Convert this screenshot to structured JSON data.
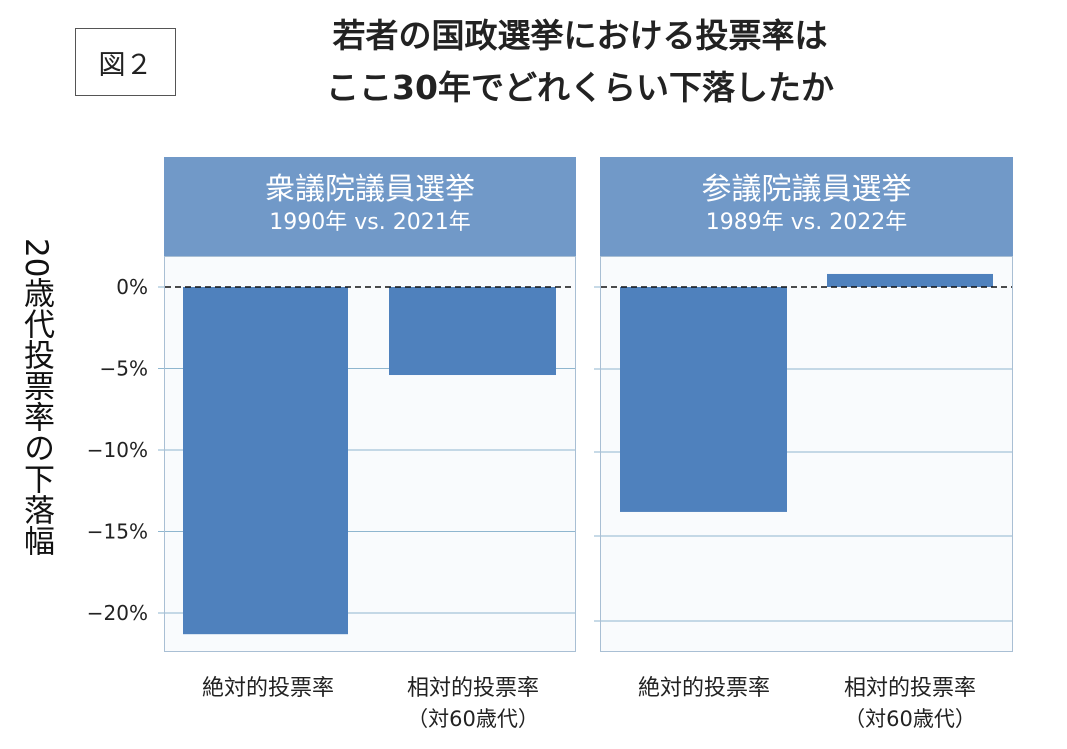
{
  "figure_label": "図２",
  "title_line1": "若者の国政選挙における投票率は",
  "title_line2": "ここ30年でどれくらい下落したか",
  "chart_data": {
    "type": "bar",
    "ylabel": "20歳代投票率の下落幅",
    "yticks": [
      "0%",
      "−5%",
      "−10%",
      "−15%",
      "−20%"
    ],
    "ylim": [
      -22.5,
      2
    ],
    "panels": [
      {
        "title": "衆議院議員選挙",
        "subtitle": "1990年  vs. 2021年",
        "categories": [
          {
            "label": "絶対的投票率",
            "sublabel": ""
          },
          {
            "label": "相対的投票率",
            "sublabel": "（対60歳代）"
          }
        ],
        "values": [
          -21.3,
          -5.4
        ]
      },
      {
        "title": "参議院議員選挙",
        "subtitle": "1989年  vs. 2022年",
        "categories": [
          {
            "label": "絶対的投票率",
            "sublabel": ""
          },
          {
            "label": "相対的投票率",
            "sublabel": "（対60歳代）"
          }
        ],
        "values": [
          -13.8,
          0.8
        ]
      }
    ],
    "bar_color": "#4f81bd",
    "header_color": "#7199c8",
    "grid": true,
    "zero_line": "dashed"
  }
}
